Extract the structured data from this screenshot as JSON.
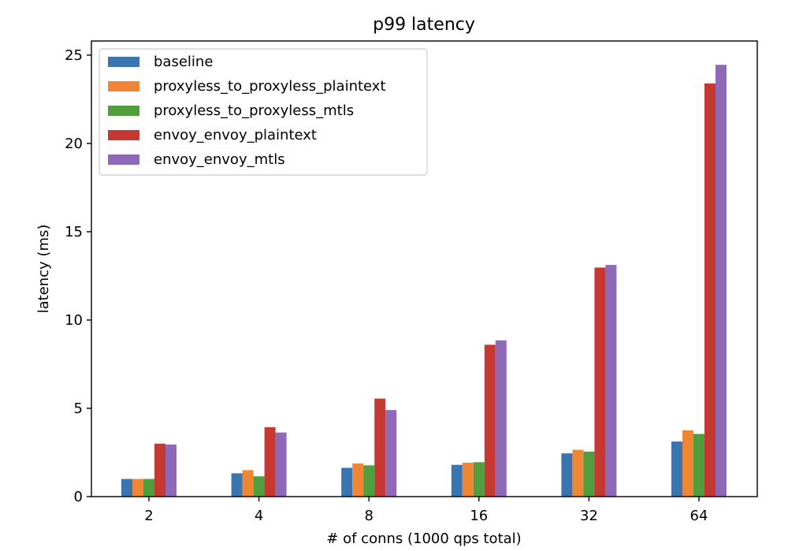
{
  "chart_data": {
    "type": "bar",
    "title": "p99 latency",
    "xlabel": "# of conns (1000 qps total)",
    "ylabel": "latency (ms)",
    "categories": [
      "2",
      "4",
      "8",
      "16",
      "32",
      "64"
    ],
    "ylim": [
      0,
      25.8
    ],
    "yticks": [
      0,
      5,
      10,
      15,
      20,
      25
    ],
    "legend_position": "top-left",
    "grid": false,
    "series": [
      {
        "name": "baseline",
        "color": "#3b75af",
        "values": [
          1.0,
          1.32,
          1.63,
          1.8,
          2.45,
          3.12
        ]
      },
      {
        "name": "proxyless_to_proxyless_plaintext",
        "color": "#ef8636",
        "values": [
          1.0,
          1.5,
          1.88,
          1.92,
          2.65,
          3.75
        ]
      },
      {
        "name": "proxyless_to_proxyless_mtls",
        "color": "#519e3e",
        "values": [
          1.0,
          1.15,
          1.77,
          1.95,
          2.55,
          3.55
        ]
      },
      {
        "name": "envoy_envoy_plaintext",
        "color": "#c53932",
        "values": [
          3.0,
          3.93,
          5.55,
          8.6,
          12.97,
          23.4
        ]
      },
      {
        "name": "envoy_envoy_mtls",
        "color": "#8d69b8",
        "values": [
          2.95,
          3.63,
          4.9,
          8.85,
          13.12,
          24.45
        ]
      }
    ]
  }
}
